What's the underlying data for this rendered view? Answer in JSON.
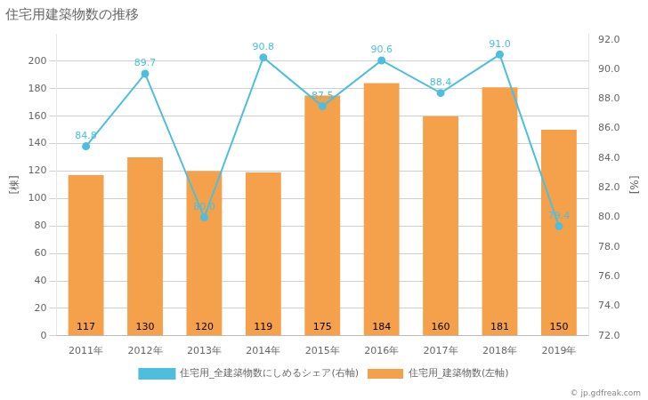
{
  "chart_data": {
    "type": "bar",
    "title": "住宅用建築物数の推移",
    "categories": [
      "2011年",
      "2012年",
      "2013年",
      "2014年",
      "2015年",
      "2016年",
      "2017年",
      "2018年",
      "2019年"
    ],
    "series": [
      {
        "name": "住宅用_建築物数(左軸)",
        "type": "bar",
        "color": "#f5a04a",
        "values": [
          117,
          130,
          120,
          119,
          175,
          184,
          160,
          181,
          150
        ]
      },
      {
        "name": "住宅用_全建築物数にしめるシェア(右軸)",
        "type": "line",
        "marker": "circle",
        "color": "#4dbfdd",
        "axis": "y2",
        "values": [
          84.8,
          89.7,
          80.0,
          90.8,
          87.5,
          90.6,
          88.4,
          91.0,
          79.4
        ],
        "value_labels": [
          "84.8",
          "89.7",
          "80.0",
          "90.8",
          "87.5",
          "90.6",
          "88.4",
          "91.0",
          "79.4"
        ]
      }
    ],
    "ylabel": "[棟]",
    "y2label": "[%]",
    "ylim": [
      0,
      220
    ],
    "yticks": [
      0,
      20,
      40,
      60,
      80,
      100,
      120,
      140,
      160,
      180,
      200
    ],
    "y2lim": [
      72.0,
      92.4
    ],
    "y2ticks": [
      {
        "value": 72,
        "label": "72.0"
      },
      {
        "value": 74,
        "label": "74.0"
      },
      {
        "value": 76,
        "label": "76.0"
      },
      {
        "value": 78,
        "label": "78.0"
      },
      {
        "value": 80,
        "label": "80.0"
      },
      {
        "value": 82,
        "label": "82.0"
      },
      {
        "value": 84,
        "label": "84.0"
      },
      {
        "value": 86,
        "label": "86.0"
      },
      {
        "value": 88,
        "label": "88.0"
      },
      {
        "value": 90,
        "label": "90.0"
      },
      {
        "value": 92,
        "label": "92.0"
      }
    ],
    "grid": true,
    "legend": "bottom",
    "data_labels": true,
    "annotations": [
      "© jp.gdfreak.com"
    ]
  }
}
